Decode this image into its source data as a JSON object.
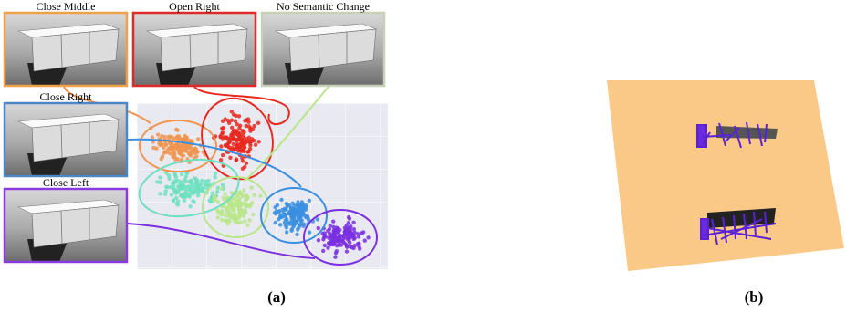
{
  "figure": {
    "panel_a": {
      "label": "(a)",
      "views": [
        {
          "label": "Close Middle"
        },
        {
          "label": "Open Right"
        },
        {
          "label": "No Semantic Change"
        },
        {
          "label": "Close Right"
        },
        {
          "label": "Close Left"
        }
      ]
    },
    "panel_b": {
      "label": "(b)"
    }
  }
}
